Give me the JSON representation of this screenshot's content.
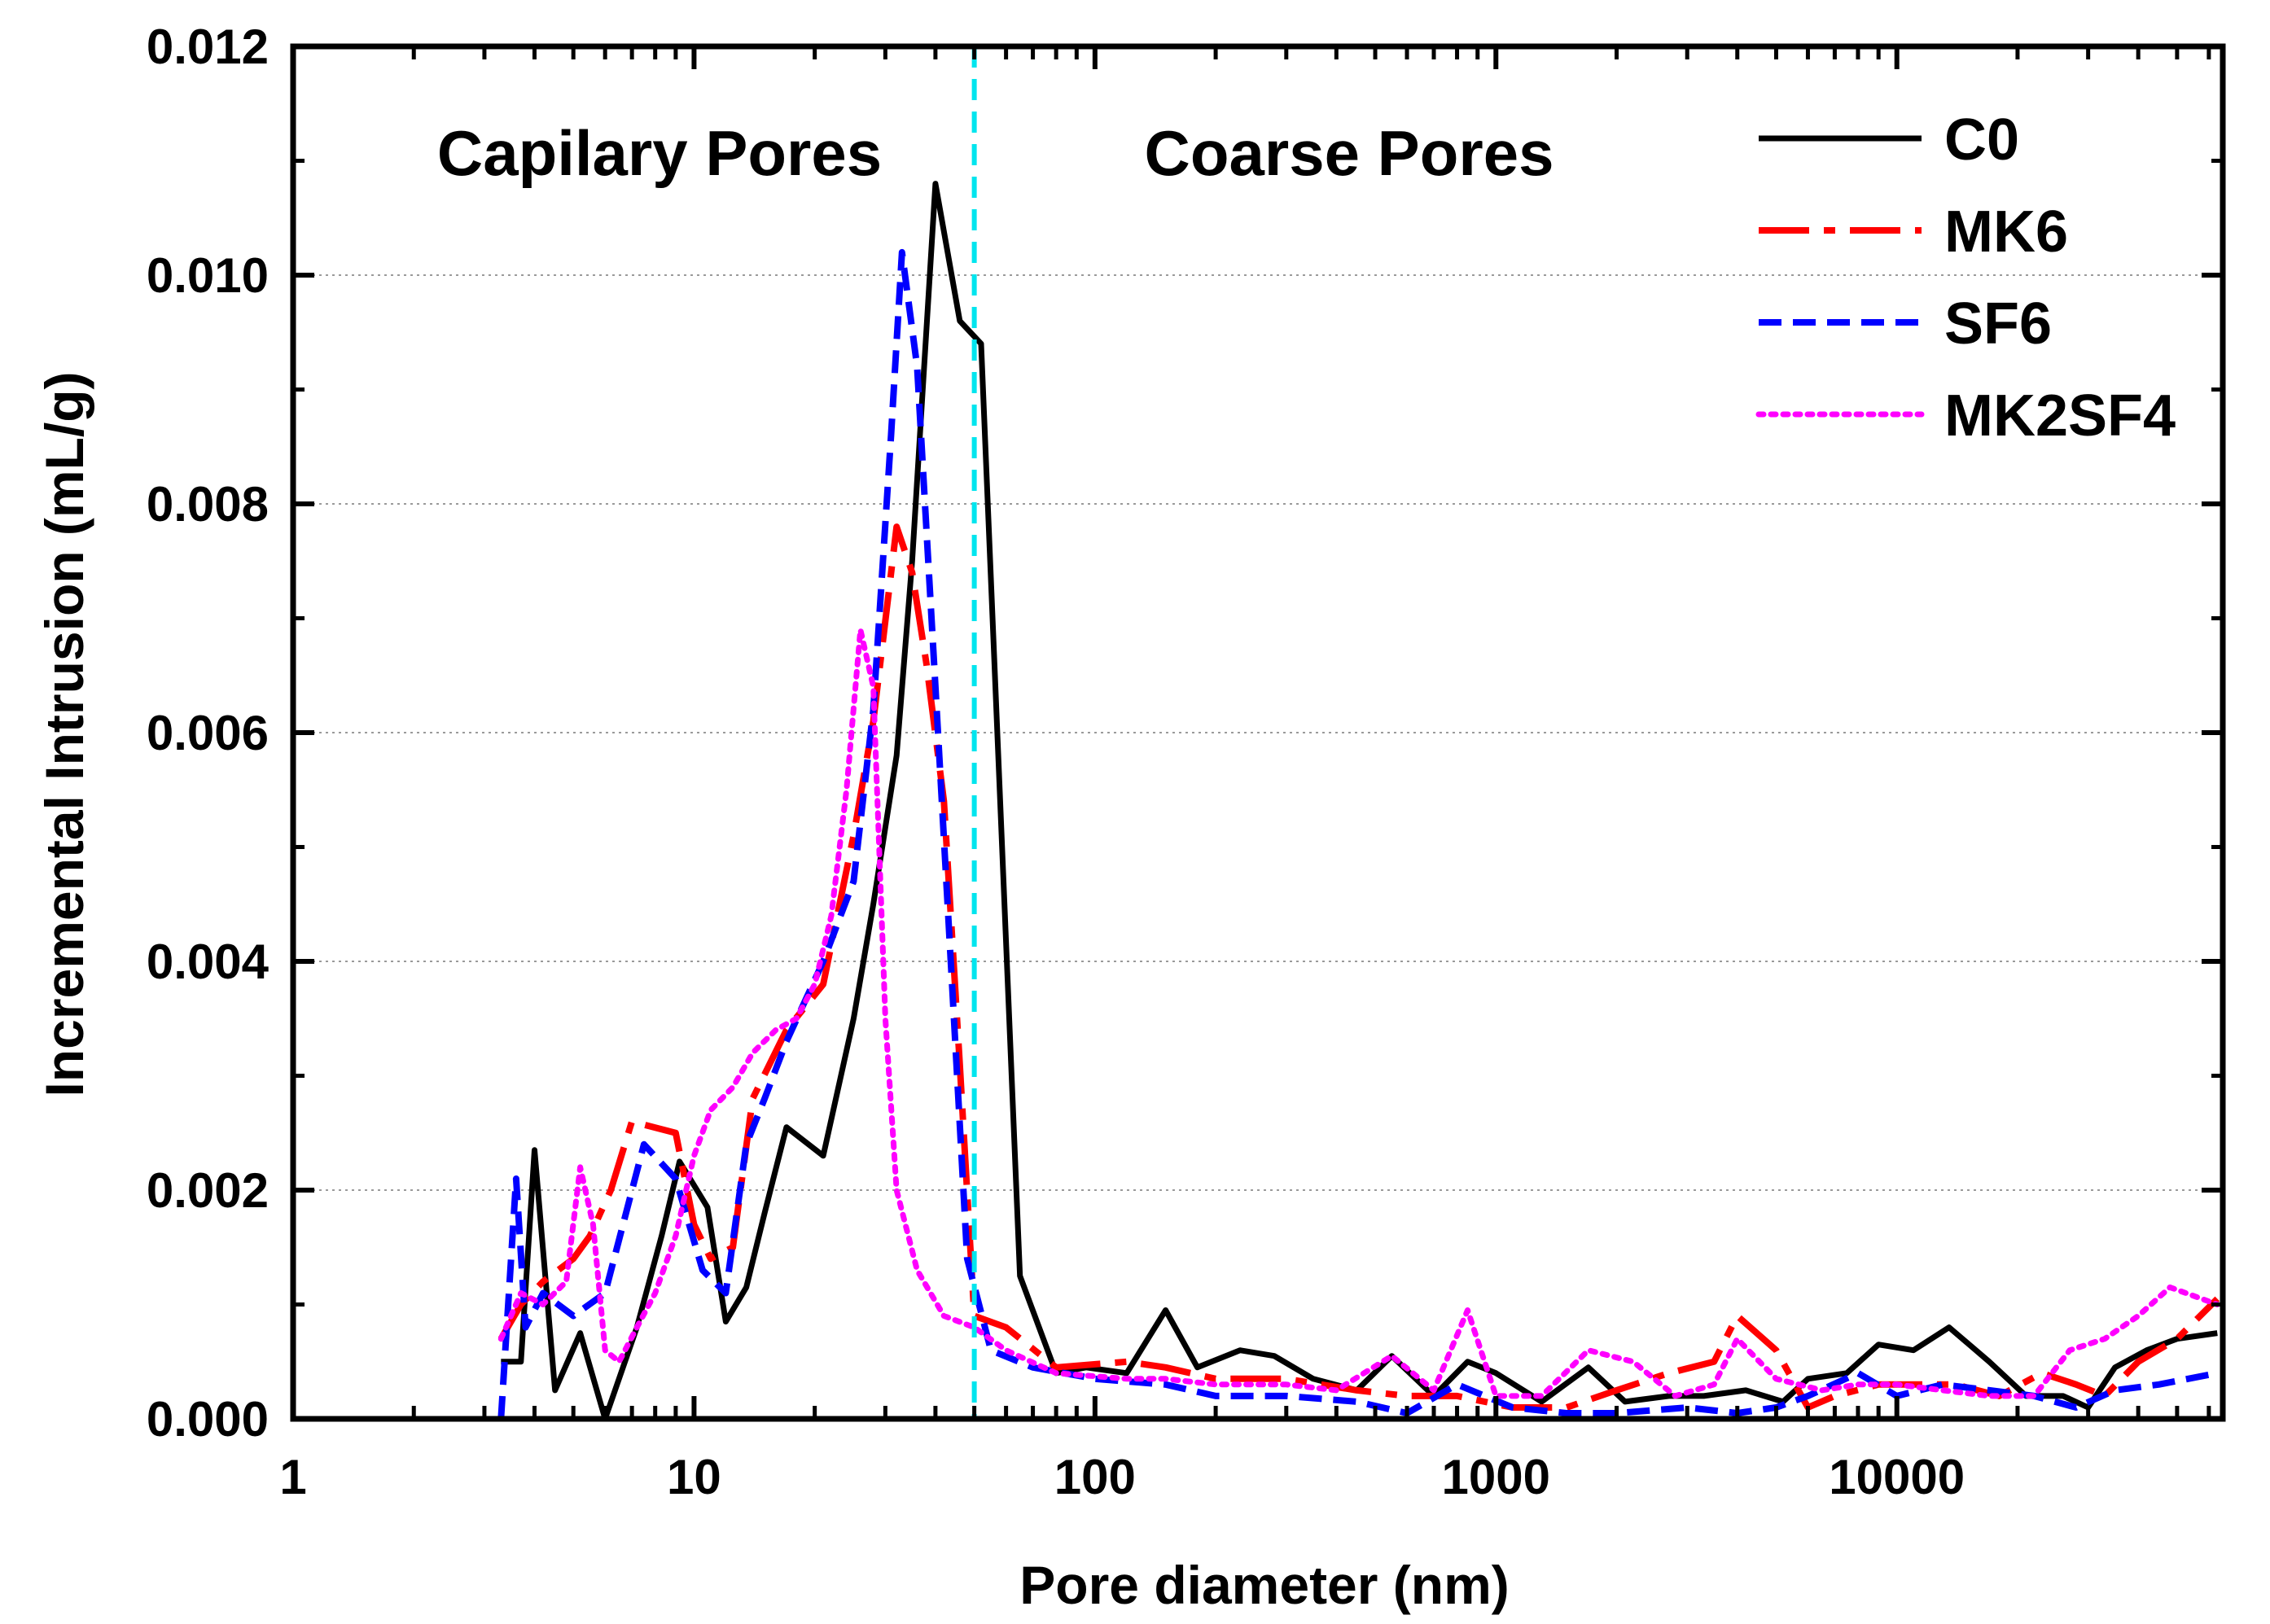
{
  "chart_data": {
    "type": "line",
    "xlabel": "Pore diameter (nm)",
    "ylabel": "Incremental Intrusion (mL/g)",
    "xscale": "log",
    "xlim": [
      1,
      65000
    ],
    "ylim": [
      0,
      0.012
    ],
    "x_ticks": [
      "1",
      "10",
      "100",
      "1000",
      "10000"
    ],
    "y_ticks": [
      "0.000",
      "0.002",
      "0.004",
      "0.006",
      "0.008",
      "0.010",
      "0.012"
    ],
    "grid": "horizontal dotted",
    "legend_position": "top-right",
    "annotations": {
      "left_region": "Capilary Pores",
      "right_region": "Coarse Pores",
      "divider_x": 50
    },
    "series": [
      {
        "name": "C0",
        "color": "#000000",
        "style": "solid",
        "x": [
          3.3,
          3.7,
          4.0,
          4.5,
          5.2,
          6.0,
          7.2,
          8.3,
          9.2,
          10.8,
          12.0,
          13.5,
          15.0,
          17.0,
          21.0,
          25.0,
          28.0,
          32.0,
          35.0,
          40.0,
          46.0,
          52.0,
          65.0,
          80.0,
          95.0,
          120.0,
          150.0,
          180.0,
          230.0,
          280.0,
          350.0,
          450.0,
          550.0,
          700.0,
          850.0,
          1000.0,
          1300.0,
          1700.0,
          2100.0,
          2700.0,
          3300.0,
          4200.0,
          5200.0,
          6000.0,
          7500.0,
          9000.0,
          11000.0,
          13500.0,
          17000.0,
          21000.0,
          26000.0,
          30000.0,
          35000.0,
          42000.0,
          50000.0,
          63000.0
        ],
        "y": [
          0.0005,
          0.0005,
          0.00235,
          0.00025,
          0.00075,
          0.0,
          0.0008,
          0.0016,
          0.00225,
          0.00185,
          0.00085,
          0.00115,
          0.0018,
          0.00255,
          0.0023,
          0.0035,
          0.0045,
          0.0058,
          0.0075,
          0.0108,
          0.0096,
          0.0094,
          0.00125,
          0.0004,
          0.00045,
          0.0004,
          0.00095,
          0.00045,
          0.0006,
          0.00055,
          0.00035,
          0.00025,
          0.00055,
          0.0002,
          0.0005,
          0.0004,
          0.00015,
          0.00045,
          0.00015,
          0.0002,
          0.0002,
          0.00025,
          0.00015,
          0.00035,
          0.0004,
          0.00065,
          0.0006,
          0.0008,
          0.0005,
          0.0002,
          0.0002,
          0.0001,
          0.00045,
          0.0006,
          0.0007,
          0.00075
        ]
      },
      {
        "name": "MK6",
        "color": "#ff0000",
        "style": "dash-dot",
        "x": [
          3.3,
          3.7,
          4.2,
          5.0,
          5.5,
          6.2,
          7.0,
          9.0,
          10.0,
          11.0,
          12.5,
          14.0,
          17.0,
          21.0,
          25.0,
          28.0,
          32.0,
          35.0,
          38.0,
          42.0,
          46.0,
          50.0,
          60.0,
          80.0,
          120.0,
          150.0,
          200.0,
          300.0,
          450.0,
          600.0,
          800.0,
          1100.0,
          1500.0,
          2000.0,
          2700.0,
          3500.0,
          4000.0,
          5000.0,
          6000.0,
          7000.0,
          9000.0,
          11000.0,
          14000.0,
          18000.0,
          23000.0,
          28000.0,
          33000.0,
          40000.0,
          50000.0,
          63000.0
        ],
        "y": [
          0.0007,
          0.001,
          0.0012,
          0.0014,
          0.0016,
          0.002,
          0.0026,
          0.0025,
          0.0017,
          0.0014,
          0.0015,
          0.0028,
          0.0034,
          0.0038,
          0.0051,
          0.0061,
          0.0078,
          0.0074,
          0.0066,
          0.0054,
          0.0031,
          0.0009,
          0.0008,
          0.00045,
          0.0005,
          0.00045,
          0.00035,
          0.00035,
          0.00025,
          0.0002,
          0.0002,
          0.0001,
          0.0001,
          0.00025,
          0.0004,
          0.0005,
          0.0009,
          0.0006,
          0.0001,
          0.0002,
          0.0003,
          0.0003,
          0.0003,
          0.0002,
          0.0004,
          0.0003,
          0.0002,
          0.0005,
          0.0007,
          0.00105
        ]
      },
      {
        "name": "SF6",
        "color": "#0000ff",
        "style": "dash",
        "x": [
          3.3,
          3.6,
          3.8,
          4.2,
          5.0,
          6.0,
          7.5,
          9.0,
          10.5,
          12.0,
          13.5,
          15.0,
          17.0,
          21.0,
          25.0,
          28.0,
          31.0,
          33.0,
          36.0,
          40.0,
          44.0,
          48.0,
          55.0,
          70.0,
          100.0,
          150.0,
          200.0,
          300.0,
          450.0,
          600.0,
          800.0,
          1100.0,
          1500.0,
          2000.0,
          3000.0,
          4000.0,
          5000.0,
          6000.0,
          8000.0,
          10000.0,
          13000.0,
          17000.0,
          22000.0,
          28000.0,
          35000.0,
          45000.0,
          63000.0
        ],
        "y": [
          0.0,
          0.0021,
          0.0008,
          0.0011,
          0.0009,
          0.0011,
          0.0024,
          0.0021,
          0.0013,
          0.0011,
          0.0024,
          0.0028,
          0.0033,
          0.004,
          0.0047,
          0.0062,
          0.0086,
          0.0102,
          0.0092,
          0.0064,
          0.0038,
          0.0014,
          0.0006,
          0.00045,
          0.00035,
          0.0003,
          0.0002,
          0.0002,
          0.00015,
          5e-05,
          0.0003,
          0.0001,
          5e-05,
          5e-05,
          0.0001,
          5e-05,
          0.0001,
          0.0002,
          0.0004,
          0.0002,
          0.0003,
          0.00025,
          0.0002,
          0.0001,
          0.00025,
          0.0003,
          0.0004
        ]
      },
      {
        "name": "MK2SF4",
        "color": "#ff00ff",
        "style": "dot",
        "x": [
          3.3,
          3.7,
          4.2,
          4.8,
          5.2,
          5.6,
          6.0,
          6.5,
          7.2,
          8.0,
          9.0,
          10.0,
          11.0,
          12.5,
          14.0,
          16.0,
          18.0,
          20.0,
          22.0,
          24.0,
          26.0,
          28.0,
          30.0,
          32.0,
          36.0,
          42.0,
          50.0,
          60.0,
          80.0,
          120.0,
          150.0,
          200.0,
          300.0,
          400.0,
          550.0,
          700.0,
          850.0,
          1000.0,
          1300.0,
          1700.0,
          2200.0,
          2800.0,
          3500.0,
          4000.0,
          5000.0,
          6500.0,
          8000.0,
          10000.0,
          13000.0,
          17000.0,
          22000.0,
          27000.0,
          33000.0,
          40000.0,
          48000.0,
          63000.0
        ],
        "y": [
          0.0007,
          0.0011,
          0.001,
          0.0012,
          0.0022,
          0.0017,
          0.0006,
          0.0005,
          0.0008,
          0.0011,
          0.0016,
          0.0023,
          0.0027,
          0.0029,
          0.0032,
          0.0034,
          0.0035,
          0.0038,
          0.0044,
          0.0055,
          0.0069,
          0.0064,
          0.0035,
          0.002,
          0.0013,
          0.0009,
          0.0008,
          0.0006,
          0.0004,
          0.00035,
          0.00035,
          0.0003,
          0.0003,
          0.00025,
          0.00055,
          0.00025,
          0.00095,
          0.0002,
          0.0002,
          0.0006,
          0.0005,
          0.0002,
          0.0003,
          0.0007,
          0.00035,
          0.00025,
          0.0003,
          0.0003,
          0.00025,
          0.0002,
          0.0002,
          0.0006,
          0.0007,
          0.0009,
          0.00115,
          0.001
        ]
      }
    ]
  }
}
